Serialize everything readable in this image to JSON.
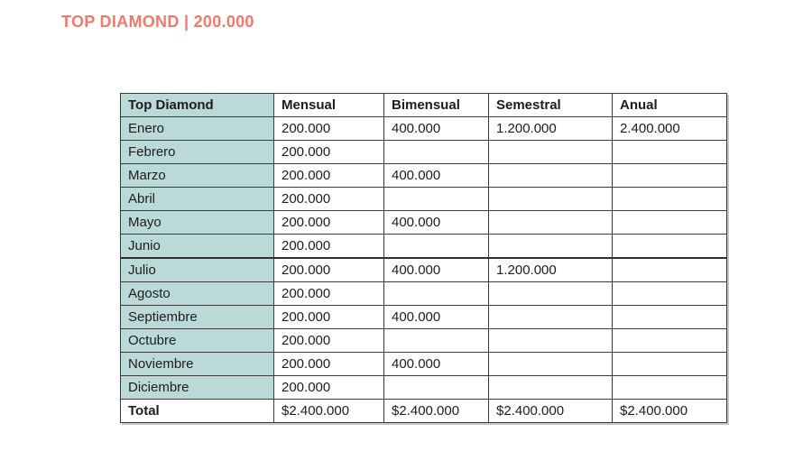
{
  "title": "TOP DIAMOND | 200.000",
  "colors": {
    "accent_title": "#f4796c",
    "row_header_bg": "#bbd9d6",
    "table_border": "#3b3b3b"
  },
  "table": {
    "columns": [
      "Top Diamond",
      "Mensual",
      "Bimensual",
      "Semestral",
      "Anual"
    ],
    "rows": [
      {
        "label": "Enero",
        "values": [
          "200.000",
          "400.000",
          "1.200.000",
          "2.400.000"
        ]
      },
      {
        "label": "Febrero",
        "values": [
          "200.000",
          "",
          "",
          ""
        ]
      },
      {
        "label": "Marzo",
        "values": [
          "200.000",
          "400.000",
          "",
          ""
        ]
      },
      {
        "label": "Abril",
        "values": [
          "200.000",
          "",
          "",
          ""
        ]
      },
      {
        "label": "Mayo",
        "values": [
          "200.000",
          "400.000",
          "",
          ""
        ]
      },
      {
        "label": "Junio",
        "values": [
          "200.000",
          "",
          "",
          ""
        ]
      },
      {
        "label": "Julio",
        "values": [
          "200.000",
          "400.000",
          "1.200.000",
          ""
        ]
      },
      {
        "label": "Agosto",
        "values": [
          "200.000",
          "",
          "",
          ""
        ]
      },
      {
        "label": "Septiembre",
        "values": [
          "200.000",
          "400.000",
          "",
          ""
        ]
      },
      {
        "label": "Octubre",
        "values": [
          "200.000",
          "",
          "",
          ""
        ]
      },
      {
        "label": "Noviembre",
        "values": [
          "200.000",
          "400.000",
          "",
          ""
        ]
      },
      {
        "label": "Diciembre",
        "values": [
          "200.000",
          "",
          "",
          ""
        ]
      }
    ],
    "total_row": {
      "label": "Total",
      "values": [
        "$2.400.000",
        "$2.400.000",
        "$2.400.000",
        "$2.400.000"
      ]
    }
  }
}
